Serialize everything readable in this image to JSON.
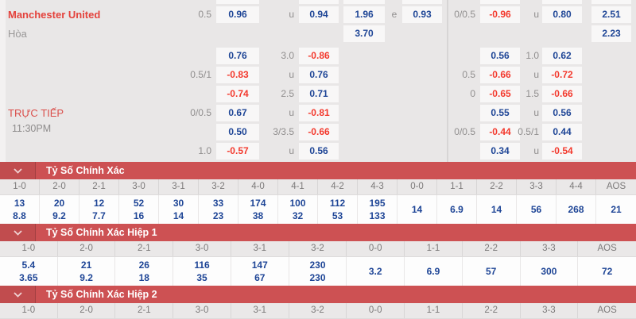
{
  "colors": {
    "header_red": "#cd5153",
    "odds_blue": "#1e4596",
    "odds_red": "#f3392d",
    "team_red": "#e4423c",
    "page_bg": "#e9e7e7"
  },
  "live": {
    "label": "TRỰC TIẾP",
    "time": "11:30PM"
  },
  "board": {
    "rows": [
      {
        "label": "Manchester United",
        "label_style": "team",
        "cells": {
          "lh_lbl": "0.5",
          "lh": "0.96",
          "lo_lbl": "u",
          "lo": "0.94",
          "lx": "1.96",
          "le_lbl": "e",
          "le": "0.93",
          "rh_lbl": "0/0.5",
          "rh": "-0.96",
          "ro_lbl": "u",
          "ro": "0.80",
          "rx": "2.51"
        }
      },
      {
        "label": "Hòa",
        "label_style": "draw",
        "cells": {
          "lx": "3.70",
          "rx": "2.23"
        }
      },
      {
        "cells": {
          "lh": "0.76",
          "lo_lbl": "3.0",
          "lo": "-0.86",
          "rh": "0.56",
          "ro_lbl": "1.0",
          "ro": "0.62"
        }
      },
      {
        "cells": {
          "lh_lbl": "0.5/1",
          "lh": "-0.83",
          "lo_lbl": "u",
          "lo": "0.76",
          "rh_lbl": "0.5",
          "rh": "-0.66",
          "ro_lbl": "u",
          "ro": "-0.72"
        }
      },
      {
        "cells": {
          "lh": "-0.74",
          "lo_lbl": "2.5",
          "lo": "0.71",
          "rh_lbl": "0",
          "rh": "-0.65",
          "ro_lbl": "1.5",
          "ro": "-0.66"
        }
      },
      {
        "cells": {
          "lh_lbl": "0/0.5",
          "lh": "0.67",
          "lo_lbl": "u",
          "lo": "-0.81",
          "rh": "0.55",
          "ro_lbl": "u",
          "ro": "0.56"
        }
      },
      {
        "cells": {
          "lh": "0.50",
          "lo_lbl": "3/3.5",
          "lo": "-0.66",
          "rh_lbl": "0/0.5",
          "rh": "-0.44",
          "ro_lbl": "0.5/1",
          "ro": "0.44"
        }
      },
      {
        "cells": {
          "lh_lbl": "1.0",
          "lh": "-0.57",
          "lo_lbl": "u",
          "lo": "0.56",
          "rh": "0.34",
          "ro_lbl": "u",
          "ro": "-0.54"
        }
      }
    ]
  },
  "sections": [
    {
      "title": "Tỷ Số Chính Xác",
      "toggle_icon": "chevron-down-icon",
      "columns": [
        {
          "score": "1-0",
          "home": "13",
          "away": "8.8"
        },
        {
          "score": "2-0",
          "home": "20",
          "away": "9.2"
        },
        {
          "score": "2-1",
          "home": "12",
          "away": "7.7"
        },
        {
          "score": "3-0",
          "home": "52",
          "away": "16"
        },
        {
          "score": "3-1",
          "home": "30",
          "away": "14"
        },
        {
          "score": "3-2",
          "home": "33",
          "away": "23"
        },
        {
          "score": "4-0",
          "home": "174",
          "away": "38"
        },
        {
          "score": "4-1",
          "home": "100",
          "away": "32"
        },
        {
          "score": "4-2",
          "home": "112",
          "away": "53"
        },
        {
          "score": "4-3",
          "home": "195",
          "away": "133"
        },
        {
          "score": "0-0",
          "single": "14"
        },
        {
          "score": "1-1",
          "single": "6.9"
        },
        {
          "score": "2-2",
          "single": "14"
        },
        {
          "score": "3-3",
          "single": "56"
        },
        {
          "score": "4-4",
          "single": "268"
        },
        {
          "score": "AOS",
          "single": "21"
        }
      ]
    },
    {
      "title": "Tỷ Số Chính Xác Hiệp 1",
      "toggle_icon": "chevron-down-icon",
      "columns": [
        {
          "score": "1-0",
          "home": "5.4",
          "away": "3.65"
        },
        {
          "score": "2-0",
          "home": "21",
          "away": "9.2"
        },
        {
          "score": "2-1",
          "home": "26",
          "away": "18"
        },
        {
          "score": "3-0",
          "home": "116",
          "away": "35"
        },
        {
          "score": "3-1",
          "home": "147",
          "away": "67"
        },
        {
          "score": "3-2",
          "home": "230",
          "away": "230"
        },
        {
          "score": "0-0",
          "single": "3.2"
        },
        {
          "score": "1-1",
          "single": "6.9"
        },
        {
          "score": "2-2",
          "single": "57"
        },
        {
          "score": "3-3",
          "single": "300"
        },
        {
          "score": "AOS",
          "single": "72"
        }
      ]
    },
    {
      "title": "Tỷ Số Chính Xác Hiệp 2",
      "toggle_icon": "chevron-down-icon",
      "headers_only": true,
      "columns": [
        {
          "score": "1-0"
        },
        {
          "score": "2-0"
        },
        {
          "score": "2-1"
        },
        {
          "score": "3-0"
        },
        {
          "score": "3-1"
        },
        {
          "score": "3-2"
        },
        {
          "score": "0-0"
        },
        {
          "score": "1-1"
        },
        {
          "score": "2-2"
        },
        {
          "score": "3-3"
        },
        {
          "score": "AOS"
        }
      ]
    }
  ]
}
